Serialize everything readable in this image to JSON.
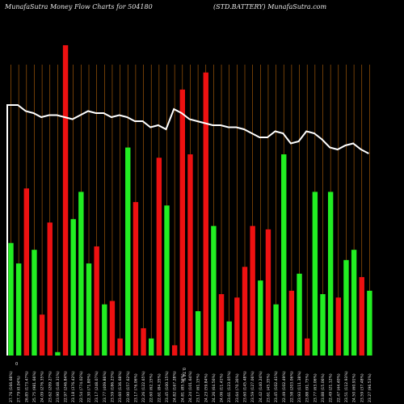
{
  "header": {
    "left": "MunafaSutra  Money Flow  Charts for 504180",
    "center": "",
    "right": "(STD.BATTERY) MunafaSutra.com"
  },
  "colors": {
    "background": "#000000",
    "up": "#22ee22",
    "down": "#ee1111",
    "grid": "#b8650a",
    "line": "#ffffff",
    "text": "#e8e8e8"
  },
  "chart_data": {
    "type": "bar",
    "grid": "vertical",
    "ylim": [
      0,
      100
    ],
    "line_ylim": [
      0,
      100
    ],
    "extra_labels": [
      "0",
      "0.74 %"
    ],
    "categories": [
      "27.76 (166.68%)",
      "27.79 (0.04%)",
      "26.85 (173.47%)",
      "25.75 (981.66%)",
      "24.09 (276.35%)",
      "23.62 (209.27%)",
      "23.90 (148.31%)",
      "22.97 (246.84%)",
      "23.18 (376.42%)",
      "22.54 (774.02%)",
      "22.30 (71.80%)",
      "23.17 (248.07%)",
      "23.77 (409.86%)",
      "23.59 (186.23%)",
      "23.60 (136.68%)",
      "22.90 (157.62%)",
      "23.17 (76.06%)",
      "22.26 (122.65%)",
      "22.60 (62.15%)",
      "22.61 (84.35%)",
      "23.45 (100.15%)",
      "24.82 (167.28%)",
      "24.81 (85.56%)",
      "24.24 (101.64%)",
      "23.17 (61.15%)",
      "24.23 (59.84%)",
      "24.26 (64.56%)",
      "24.06 (11.41%)",
      "23.61 (123.05%)",
      "23.64 (70.36%)",
      "23.60 (145.48%)",
      "23.59 (127.06%)",
      "24.42 (140.24%)",
      "23.61 (45.35%)",
      "23.45 (102.41%)",
      "22.49 (102.49%)",
      "22.58 (203.06%)",
      "23.93 (111.38%)",
      "23.88 (91.75%)",
      "23.77 (63.06%)",
      "23.88 (15.06%)",
      "22.49 (21.12%)",
      "22.47 (44.40%)",
      "23.51 (112.93%)",
      "24.50 (60.91%)",
      "23.59 (37.48%)",
      "23.27 (96.53%)"
    ],
    "series": [
      {
        "values": [
          33,
          27,
          49,
          31,
          12,
          39,
          1,
          91,
          40,
          48,
          27,
          32,
          15,
          16,
          5,
          61,
          45,
          8,
          5,
          58,
          44,
          3,
          78,
          59,
          13,
          83,
          38,
          18,
          10,
          17,
          26,
          38,
          22,
          37,
          15,
          59,
          19,
          24,
          5,
          48,
          18,
          48,
          17,
          28,
          31,
          23,
          19
        ]
      }
    ],
    "bar_direction": [
      "up",
      "up",
      "down",
      "up",
      "down",
      "down",
      "up",
      "down",
      "up",
      "up",
      "up",
      "down",
      "up",
      "down",
      "down",
      "up",
      "down",
      "down",
      "up",
      "down",
      "up",
      "down",
      "down",
      "down",
      "up",
      "down",
      "up",
      "down",
      "up",
      "down",
      "down",
      "down",
      "up",
      "down",
      "up",
      "up",
      "down",
      "up",
      "down",
      "up",
      "up",
      "up",
      "down",
      "up",
      "up",
      "down",
      "up"
    ],
    "line_values": [
      80,
      80,
      77,
      76,
      74,
      75,
      75,
      74,
      73,
      75,
      77,
      76,
      76,
      74,
      75,
      74,
      72,
      72,
      69,
      70,
      68,
      78,
      76,
      73,
      72,
      71,
      70,
      70,
      69,
      69,
      68,
      66,
      64,
      64,
      67,
      66,
      61,
      62,
      67,
      66,
      63,
      59,
      58,
      60,
      61,
      58,
      56
    ]
  }
}
